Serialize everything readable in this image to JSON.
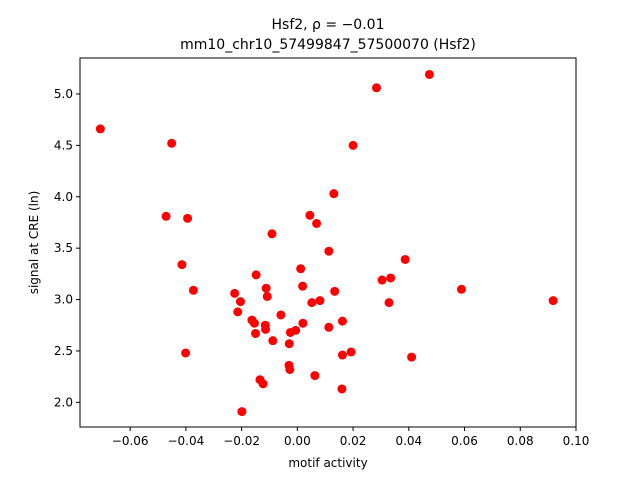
{
  "chart_data": {
    "type": "scatter",
    "title_line1": "Hsf2, ρ = −0.01",
    "title_line2": "mm10_chr10_57499847_57500070 (Hsf2)",
    "xlabel": "motif activity",
    "ylabel": "signal at CRE (ln)",
    "xlim": [
      -0.078,
      0.1
    ],
    "ylim": [
      1.76,
      5.35
    ],
    "xticks": [
      -0.06,
      -0.04,
      -0.02,
      0.0,
      0.02,
      0.04,
      0.06,
      0.08,
      0.1
    ],
    "xtick_labels": [
      "−0.06",
      "−0.04",
      "−0.02",
      "0.00",
      "0.02",
      "0.04",
      "0.06",
      "0.08",
      "0.10"
    ],
    "yticks": [
      2.0,
      2.5,
      3.0,
      3.5,
      4.0,
      4.5,
      5.0
    ],
    "ytick_labels": [
      "2.0",
      "2.5",
      "3.0",
      "3.5",
      "4.0",
      "4.5",
      "5.0"
    ],
    "point_color": "#ff0000",
    "grid": false,
    "points": [
      [
        -0.0707,
        4.66
      ],
      [
        -0.0451,
        4.52
      ],
      [
        -0.0471,
        3.81
      ],
      [
        -0.0394,
        3.79
      ],
      [
        -0.0414,
        3.34
      ],
      [
        -0.0373,
        3.09
      ],
      [
        -0.0401,
        2.48
      ],
      [
        -0.0225,
        3.06
      ],
      [
        -0.0204,
        2.98
      ],
      [
        -0.0214,
        2.88
      ],
      [
        -0.0148,
        3.24
      ],
      [
        -0.0112,
        3.11
      ],
      [
        -0.0108,
        3.03
      ],
      [
        -0.0091,
        3.64
      ],
      [
        -0.0163,
        2.8
      ],
      [
        -0.0154,
        2.77
      ],
      [
        -0.015,
        2.67
      ],
      [
        -0.0115,
        2.75
      ],
      [
        -0.0114,
        2.71
      ],
      [
        -0.0088,
        2.6
      ],
      [
        -0.0059,
        2.85
      ],
      [
        -0.0029,
        2.57
      ],
      [
        -0.0025,
        2.68
      ],
      [
        -0.0006,
        2.7
      ],
      [
        0.002,
        2.77
      ],
      [
        -0.003,
        2.36
      ],
      [
        -0.0027,
        2.32
      ],
      [
        -0.0134,
        2.22
      ],
      [
        -0.0123,
        2.18
      ],
      [
        -0.0199,
        1.91
      ],
      [
        0.0012,
        3.3
      ],
      [
        0.0019,
        3.13
      ],
      [
        0.0052,
        2.97
      ],
      [
        0.0081,
        2.99
      ],
      [
        0.0045,
        3.82
      ],
      [
        0.0069,
        3.74
      ],
      [
        0.0113,
        3.47
      ],
      [
        0.0131,
        4.03
      ],
      [
        0.0134,
        3.08
      ],
      [
        0.0113,
        2.73
      ],
      [
        0.0162,
        2.79
      ],
      [
        0.0162,
        2.46
      ],
      [
        0.0193,
        2.49
      ],
      [
        0.016,
        2.13
      ],
      [
        0.0063,
        2.26
      ],
      [
        0.02,
        4.5
      ],
      [
        0.0284,
        5.06
      ],
      [
        0.0474,
        5.19
      ],
      [
        0.0304,
        3.19
      ],
      [
        0.0335,
        3.21
      ],
      [
        0.0387,
        3.39
      ],
      [
        0.0329,
        2.97
      ],
      [
        0.041,
        2.44
      ],
      [
        0.0589,
        3.1
      ],
      [
        0.0918,
        2.99
      ]
    ]
  }
}
